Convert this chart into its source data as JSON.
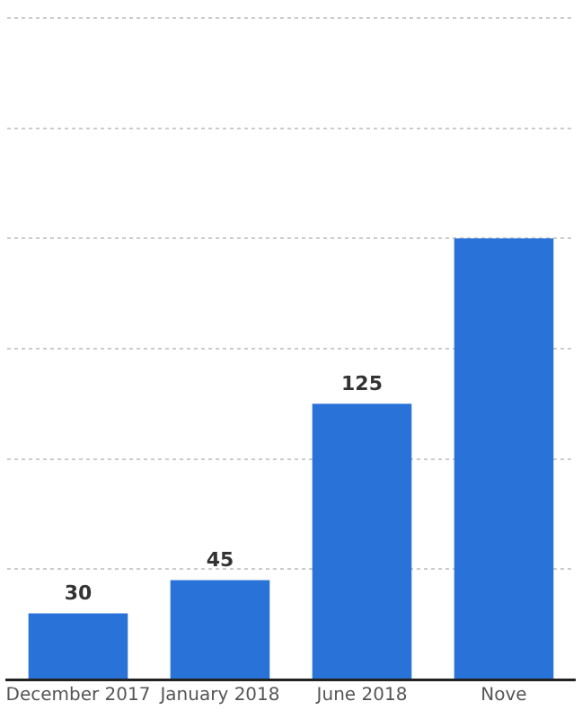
{
  "chart_data": {
    "type": "bar",
    "categories": [
      "December 2017",
      "January 2018",
      "June 2018",
      "Nove"
    ],
    "values": [
      30,
      45,
      125,
      200
    ],
    "value_labels": [
      "30",
      "45",
      "125",
      null
    ],
    "color": "#2872d8",
    "ylim": [
      0,
      300
    ],
    "yticks": [
      {
        "value": 0,
        "label": null
      },
      {
        "value": 50,
        "label": null
      },
      {
        "value": 100,
        "label": null
      },
      {
        "value": 150,
        "label": null
      },
      {
        "value": 200,
        "label": null
      },
      {
        "value": 250,
        "label": null
      },
      {
        "value": 300,
        "label": null
      }
    ],
    "tick_labels": "x",
    "grid": "y",
    "legend": false
  }
}
